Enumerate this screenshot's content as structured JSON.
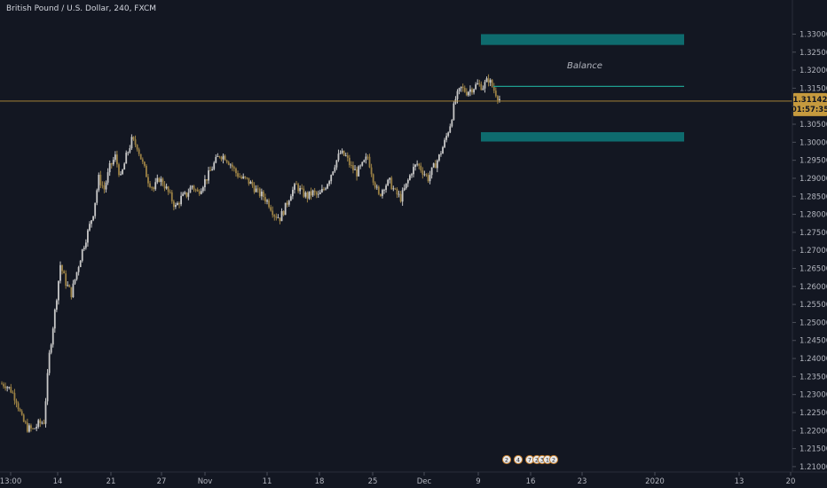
{
  "header": {
    "symbol_title": "British Pound / U.S. Dollar, 240, FXCM"
  },
  "colors": {
    "background": "#131722",
    "candle_up": "#c8c8c8",
    "candle_down": "#9a8044",
    "zone_fill": "#0e6b6e",
    "balance_line": "#1e9e8e",
    "current_price_line": "#b8913a",
    "price_badge": "#c69a3e",
    "axis_text": "#b2b5be"
  },
  "price_badge": {
    "price": "1.31142",
    "countdown": "01:57:35"
  },
  "annotations": {
    "balance_label": "Balance"
  },
  "events": [
    "2",
    "4",
    "7",
    "2",
    "3",
    "1",
    "2"
  ],
  "chart_data": {
    "type": "candlestick",
    "title": "British Pound / U.S. Dollar, 240, FXCM",
    "timeframe": "240",
    "ylim": [
      1.2085,
      1.3375
    ],
    "y_ticks": [
      "1.33000",
      "1.32500",
      "1.32000",
      "1.31500",
      "1.31000",
      "1.30500",
      "1.30000",
      "1.29500",
      "1.29000",
      "1.28500",
      "1.28000",
      "1.27500",
      "1.27000",
      "1.26500",
      "1.26000",
      "1.25500",
      "1.25000",
      "1.24500",
      "1.24000",
      "1.23500",
      "1.23000",
      "1.22500",
      "1.22000",
      "1.21500",
      "1.21000"
    ],
    "x_ticks": [
      "13:00",
      "14",
      "21",
      "27",
      "Nov",
      "11",
      "18",
      "25",
      "Dec",
      "9",
      "16",
      "23",
      "2020",
      "13",
      "20"
    ],
    "current_price": 1.31142,
    "zones": [
      {
        "price_top": 1.33,
        "price_bottom": 1.327
      },
      {
        "price_top": 1.3028,
        "price_bottom": 1.3002
      }
    ],
    "balance_level": 1.3155,
    "path": [
      {
        "x": "13:00",
        "y": 1.233
      },
      {
        "x": "13:00",
        "y": 1.2328
      },
      {
        "x": "13:00",
        "y": 1.2312
      },
      {
        "x": "13:00",
        "y": 1.2285
      },
      {
        "x": "13:00",
        "y": 1.2232
      },
      {
        "x": "13:00",
        "y": 1.2207
      },
      {
        "x": "13:00",
        "y": 1.2202
      },
      {
        "x": "13:00",
        "y": 1.2218
      },
      {
        "x": "13:00",
        "y": 1.2225
      },
      {
        "x": "13:00",
        "y": 1.241
      },
      {
        "x": "13:00",
        "y": 1.253
      },
      {
        "x": "14",
        "y": 1.266
      },
      {
        "x": "14",
        "y": 1.261
      },
      {
        "x": "14",
        "y": 1.258
      },
      {
        "x": "14",
        "y": 1.264
      },
      {
        "x": "14",
        "y": 1.27
      },
      {
        "x": "14",
        "y": 1.275
      },
      {
        "x": "14",
        "y": 1.2805
      },
      {
        "x": "14",
        "y": 1.29
      },
      {
        "x": "14",
        "y": 1.287
      },
      {
        "x": "14",
        "y": 1.293
      },
      {
        "x": "14",
        "y": 1.296
      },
      {
        "x": "21",
        "y": 1.29
      },
      {
        "x": "21",
        "y": 1.296
      },
      {
        "x": "21",
        "y": 1.3005
      },
      {
        "x": "21",
        "y": 1.299
      },
      {
        "x": "21",
        "y": 1.294
      },
      {
        "x": "21",
        "y": 1.2895
      },
      {
        "x": "21",
        "y": 1.287
      },
      {
        "x": "21",
        "y": 1.29
      },
      {
        "x": "21",
        "y": 1.288
      },
      {
        "x": "21",
        "y": 1.285
      },
      {
        "x": "27",
        "y": 1.282
      },
      {
        "x": "27",
        "y": 1.2845
      },
      {
        "x": "27",
        "y": 1.2855
      },
      {
        "x": "27",
        "y": 1.288
      },
      {
        "x": "27",
        "y": 1.286
      },
      {
        "x": "27",
        "y": 1.2885
      },
      {
        "x": "27",
        "y": 1.291
      },
      {
        "x": "27",
        "y": 1.294
      },
      {
        "x": "27",
        "y": 1.2965
      },
      {
        "x": "Nov",
        "y": 1.296
      },
      {
        "x": "Nov",
        "y": 1.294
      },
      {
        "x": "Nov",
        "y": 1.2915
      },
      {
        "x": "Nov",
        "y": 1.29
      },
      {
        "x": "Nov",
        "y": 1.2895
      },
      {
        "x": "Nov",
        "y": 1.288
      },
      {
        "x": "Nov",
        "y": 1.286
      },
      {
        "x": "Nov",
        "y": 1.285
      },
      {
        "x": "Nov",
        "y": 1.283
      },
      {
        "x": "11",
        "y": 1.28
      },
      {
        "x": "11",
        "y": 1.279
      },
      {
        "x": "11",
        "y": 1.282
      },
      {
        "x": "11",
        "y": 1.286
      },
      {
        "x": "11",
        "y": 1.288
      },
      {
        "x": "11",
        "y": 1.286
      },
      {
        "x": "11",
        "y": 1.285
      },
      {
        "x": "11",
        "y": 1.286
      },
      {
        "x": "11",
        "y": 1.285
      },
      {
        "x": "18",
        "y": 1.287
      },
      {
        "x": "18",
        "y": 1.29
      },
      {
        "x": "18",
        "y": 1.294
      },
      {
        "x": "18",
        "y": 1.297
      },
      {
        "x": "18",
        "y": 1.296
      },
      {
        "x": "18",
        "y": 1.293
      },
      {
        "x": "18",
        "y": 1.2915
      },
      {
        "x": "18",
        "y": 1.2935
      },
      {
        "x": "18",
        "y": 1.296
      },
      {
        "x": "25",
        "y": 1.29
      },
      {
        "x": "25",
        "y": 1.285
      },
      {
        "x": "25",
        "y": 1.288
      },
      {
        "x": "25",
        "y": 1.289
      },
      {
        "x": "25",
        "y": 1.286
      },
      {
        "x": "25",
        "y": 1.2845
      },
      {
        "x": "25",
        "y": 1.288
      },
      {
        "x": "25",
        "y": 1.292
      },
      {
        "x": "25",
        "y": 1.294
      },
      {
        "x": "Dec",
        "y": 1.292
      },
      {
        "x": "Dec",
        "y": 1.29
      },
      {
        "x": "Dec",
        "y": 1.293
      },
      {
        "x": "Dec",
        "y": 1.296
      },
      {
        "x": "Dec",
        "y": 1.3
      },
      {
        "x": "Dec",
        "y": 1.305
      },
      {
        "x": "Dec",
        "y": 1.312
      },
      {
        "x": "Dec",
        "y": 1.315
      },
      {
        "x": "Dec",
        "y": 1.314
      },
      {
        "x": "9",
        "y": 1.315
      },
      {
        "x": "9",
        "y": 1.316
      },
      {
        "x": "9",
        "y": 1.3155
      },
      {
        "x": "9",
        "y": 1.3175
      },
      {
        "x": "9",
        "y": 1.3145
      },
      {
        "x": "9",
        "y": 1.312
      }
    ]
  }
}
